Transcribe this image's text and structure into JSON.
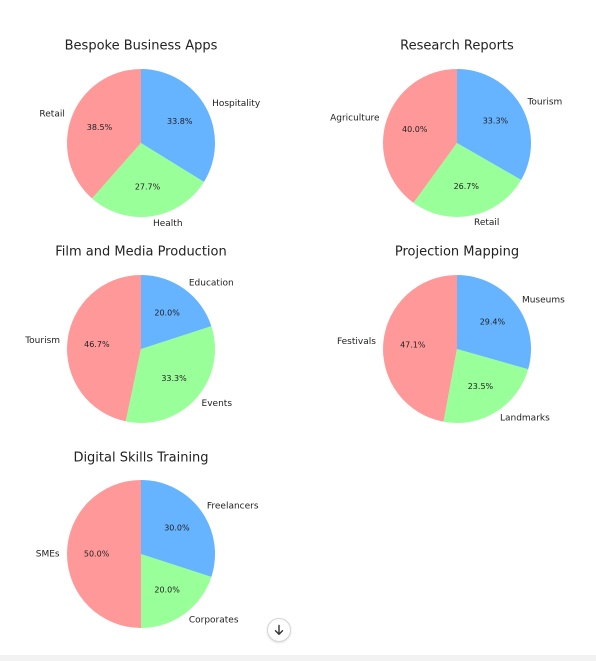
{
  "colors": {
    "red": "#ff9999",
    "blue": "#66b3ff",
    "green": "#99ff99"
  },
  "scroll_button": {
    "icon": "arrow-down-icon"
  },
  "chart_data": [
    {
      "type": "pie",
      "title": "Bespoke Business Apps",
      "slices": [
        {
          "label": "Retail",
          "value": 38.5,
          "color": "#ff9999"
        },
        {
          "label": "Health",
          "value": 27.7,
          "color": "#99ff99"
        },
        {
          "label": "Hospitality",
          "value": 33.8,
          "color": "#66b3ff"
        }
      ]
    },
    {
      "type": "pie",
      "title": "Research Reports",
      "slices": [
        {
          "label": "Agriculture",
          "value": 40.0,
          "color": "#ff9999"
        },
        {
          "label": "Retail",
          "value": 26.7,
          "color": "#99ff99"
        },
        {
          "label": "Tourism",
          "value": 33.3,
          "color": "#66b3ff"
        }
      ]
    },
    {
      "type": "pie",
      "title": "Film and Media Production",
      "slices": [
        {
          "label": "Tourism",
          "value": 46.7,
          "color": "#ff9999"
        },
        {
          "label": "Events",
          "value": 33.3,
          "color": "#99ff99"
        },
        {
          "label": "Education",
          "value": 20.0,
          "color": "#66b3ff"
        }
      ]
    },
    {
      "type": "pie",
      "title": "Projection Mapping",
      "slices": [
        {
          "label": "Festivals",
          "value": 47.1,
          "color": "#ff9999"
        },
        {
          "label": "Landmarks",
          "value": 23.5,
          "color": "#99ff99"
        },
        {
          "label": "Museums",
          "value": 29.4,
          "color": "#66b3ff"
        }
      ]
    },
    {
      "type": "pie",
      "title": "Digital Skills Training",
      "slices": [
        {
          "label": "SMEs",
          "value": 50.0,
          "color": "#ff9999"
        },
        {
          "label": "Corporates",
          "value": 20.0,
          "color": "#99ff99"
        },
        {
          "label": "Freelancers",
          "value": 30.0,
          "color": "#66b3ff"
        }
      ]
    }
  ]
}
